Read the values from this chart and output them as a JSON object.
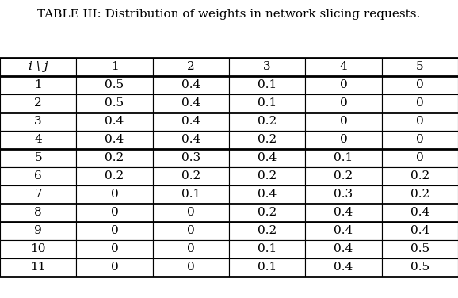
{
  "title": "TABLE III: Distribution of weights in network slicing requests.",
  "header_col": "i \\ j",
  "col_headers": [
    "1",
    "2",
    "3",
    "4",
    "5"
  ],
  "row_headers": [
    "1",
    "2",
    "3",
    "4",
    "5",
    "6",
    "7",
    "8",
    "9",
    "10",
    "11"
  ],
  "table_data": [
    [
      "0.5",
      "0.4",
      "0.1",
      "0",
      "0"
    ],
    [
      "0.5",
      "0.4",
      "0.1",
      "0",
      "0"
    ],
    [
      "0.4",
      "0.4",
      "0.2",
      "0",
      "0"
    ],
    [
      "0.4",
      "0.4",
      "0.2",
      "0",
      "0"
    ],
    [
      "0.2",
      "0.3",
      "0.4",
      "0.1",
      "0"
    ],
    [
      "0.2",
      "0.2",
      "0.2",
      "0.2",
      "0.2"
    ],
    [
      "0",
      "0.1",
      "0.4",
      "0.3",
      "0.2"
    ],
    [
      "0",
      "0",
      "0.2",
      "0.4",
      "0.4"
    ],
    [
      "0",
      "0",
      "0.2",
      "0.4",
      "0.4"
    ],
    [
      "0",
      "0",
      "0.1",
      "0.4",
      "0.5"
    ],
    [
      "0",
      "0",
      "0.1",
      "0.4",
      "0.5"
    ]
  ],
  "thick_after_table_rows": [
    0,
    2,
    4,
    7,
    8,
    11
  ],
  "bg_color": "#ffffff",
  "text_color": "#000000",
  "font_size": 11,
  "title_fontsize": 11
}
